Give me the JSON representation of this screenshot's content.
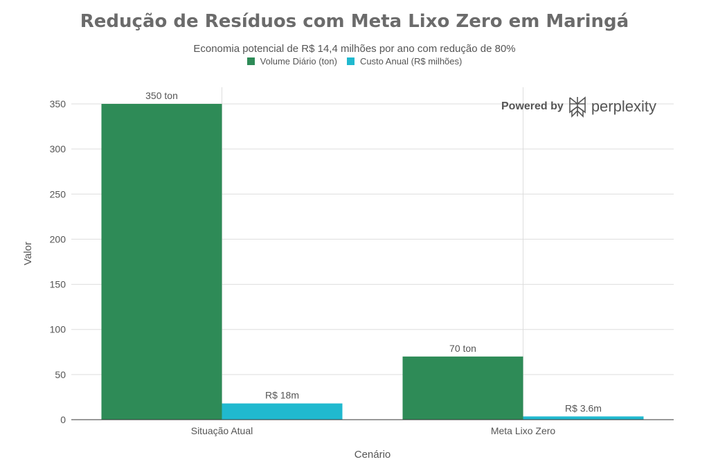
{
  "chart_data": {
    "type": "bar",
    "title": "Redução de Resíduos com Meta Lixo Zero em Maringá",
    "subtitle": "Economia potencial de R$ 14,4 milhões por ano com redução de 80%",
    "xlabel": "Cenário",
    "ylabel": "Valor",
    "categories": [
      "Situação Atual",
      "Meta Lixo Zero"
    ],
    "ylim": [
      0,
      350
    ],
    "yticks": [
      0,
      50,
      100,
      150,
      200,
      250,
      300,
      350
    ],
    "ytick_labels": [
      "0",
      "50",
      "100",
      "150",
      "200",
      "250",
      "300",
      "350"
    ],
    "grid": true,
    "legend_position": "top-center",
    "series": [
      {
        "name": "Volume Diário (ton)",
        "color": "#2e8b57",
        "values": [
          350,
          70
        ],
        "labels": [
          "350 ton",
          "70 ton"
        ]
      },
      {
        "name": "Custo Anual (R$ milhões)",
        "color": "#20b9cf",
        "values": [
          18,
          3.6
        ],
        "labels": [
          "R$ 18m",
          "R$ 3.6m"
        ]
      }
    ]
  },
  "watermark": {
    "powered_by": "Powered by",
    "brand": "perplexity",
    "icon": "perplexity-logo-icon"
  }
}
